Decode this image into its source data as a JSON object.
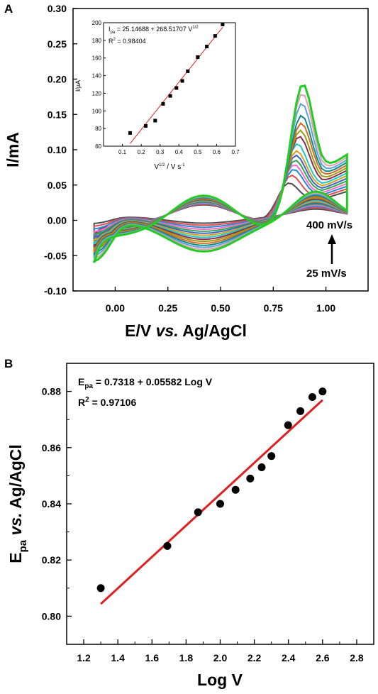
{
  "panel_a": {
    "label": "A",
    "xlabel": "E/V",
    "xlabel_italic": "vs.",
    "xlabel_tail": "Ag/AgCl",
    "ylabel": "I/mA",
    "annotation_top": "400 mV/s",
    "annotation_bottom": "25 mV/s"
  },
  "inset": {
    "eq_prefix": "I",
    "eq_sub": "pa",
    "eq_body": " = 25.14688 + 268.51707 V",
    "eq_sup": "1/2",
    "r2_prefix": "R",
    "r2_sup": "2",
    "r2_body": " = 0.98404",
    "ylabel": "I/µA",
    "xlabel_v": "V",
    "xlabel_sup": "1/2",
    "xlabel_tail": " / V s",
    "xlabel_sup2": "-1"
  },
  "panel_b": {
    "label": "B",
    "eq_prefix": "E",
    "eq_sub": "pa",
    "eq_body": " = 0.7318 + 0.05582 Log V",
    "r2_prefix": "R",
    "r2_sup": "2",
    "r2_body": " = 0.97106",
    "ylabel_e": "E",
    "ylabel_sub": "pa",
    "ylabel_italic": "vs.",
    "ylabel_tail": "Ag/AgCl",
    "xlabel": "Log V"
  },
  "colors": {
    "fit_line": "#e02020",
    "cv_series": [
      "#4d4d4d",
      "#e84a4a",
      "#1f8ad6",
      "#ff66cc",
      "#2ea84a",
      "#3f5fc9",
      "#d4a017",
      "#18c9c9",
      "#8b2a52",
      "#9b9b12",
      "#d96a1f",
      "#0b8a8a",
      "#5aa0d8",
      "#e0a0b0",
      "#22cc22"
    ]
  },
  "chart_data": [
    {
      "type": "line",
      "panel": "A",
      "description_source": "cyclic voltammograms at 15 scan rates",
      "xlabel": "E/V vs. Ag/AgCl",
      "ylabel": "I/mA",
      "xlim": [
        -0.2,
        1.2
      ],
      "ylim": [
        -0.1,
        0.3
      ],
      "x_ticks": [
        "0.00",
        "0.25",
        "0.50",
        "0.75",
        "1.00"
      ],
      "y_ticks": [
        "-0.10",
        "-0.05",
        "0.00",
        "0.05",
        "0.10",
        "0.15",
        "0.20",
        "0.25",
        "0.30"
      ],
      "scan_rate_range": [
        "25 mV/s",
        "400 mV/s"
      ],
      "anodic_peak_potential_V": [
        0.81,
        0.825,
        0.837,
        0.84,
        0.845,
        0.849,
        0.853,
        0.857,
        0.868,
        0.873,
        0.878,
        0.88,
        0.882,
        0.885,
        0.888
      ],
      "anodic_peak_current_mA": [
        0.086,
        0.096,
        0.104,
        0.112,
        0.119,
        0.127,
        0.134,
        0.145,
        0.155,
        0.164,
        0.175,
        0.187,
        0.205,
        0.22,
        0.234
      ],
      "series_count": 15
    },
    {
      "type": "scatter",
      "panel": "A-inset",
      "xlabel": "V^1/2 / V s^-1",
      "ylabel": "I/µA",
      "xlim": [
        0.0,
        0.7
      ],
      "ylim": [
        60,
        200
      ],
      "x_ticks": [
        "0.1",
        "0.2",
        "0.3",
        "0.4",
        "0.5",
        "0.6",
        "0.7"
      ],
      "y_ticks": [
        "60",
        "80",
        "100",
        "120",
        "140",
        "160",
        "180",
        "200"
      ],
      "x": [
        0.141,
        0.224,
        0.274,
        0.316,
        0.354,
        0.387,
        0.418,
        0.447,
        0.5,
        0.548,
        0.592,
        0.632
      ],
      "y": [
        75,
        83,
        89,
        108,
        117,
        126,
        134,
        145,
        161,
        173,
        185,
        198
      ],
      "fit": {
        "intercept": 25.14688,
        "slope": 268.51707,
        "x_range": [
          0.141,
          0.632
        ]
      }
    },
    {
      "type": "scatter",
      "panel": "B",
      "xlabel": "Log V",
      "ylabel": "Epa vs. Ag/AgCl",
      "xlim": [
        1.1,
        2.9
      ],
      "ylim": [
        0.79,
        0.89
      ],
      "x_ticks": [
        "1.2",
        "1.4",
        "1.6",
        "1.8",
        "2.0",
        "2.2",
        "2.4",
        "2.6",
        "2.8"
      ],
      "y_ticks": [
        "0.80",
        "0.82",
        "0.84",
        "0.86",
        "0.88"
      ],
      "x": [
        1.3,
        1.69,
        1.87,
        2.0,
        2.09,
        2.176,
        2.243,
        2.3,
        2.398,
        2.47,
        2.54,
        2.6
      ],
      "y": [
        0.81,
        0.825,
        0.837,
        0.84,
        0.845,
        0.849,
        0.853,
        0.857,
        0.868,
        0.873,
        0.878,
        0.88
      ],
      "fit": {
        "intercept": 0.7318,
        "slope": 0.05582,
        "x_range": [
          1.3,
          2.6
        ]
      }
    }
  ]
}
